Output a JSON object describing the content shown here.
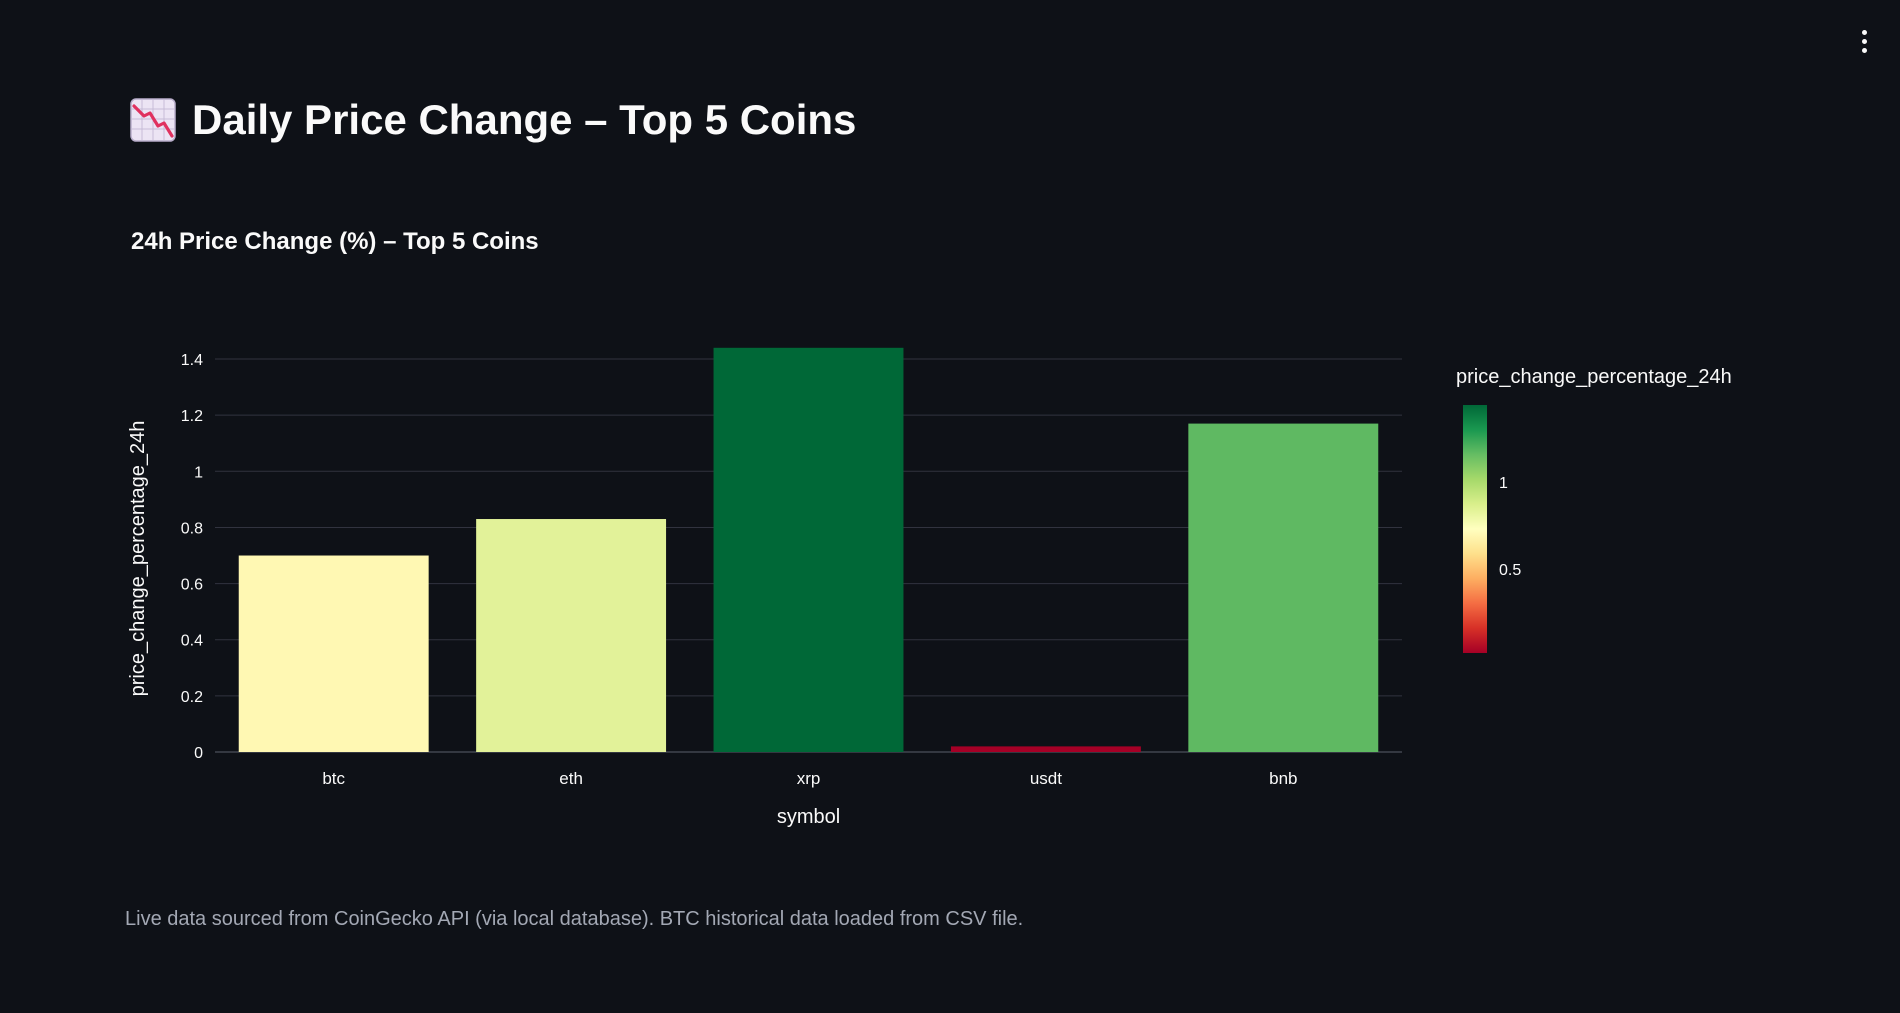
{
  "page": {
    "title": "Daily Price Change – Top 5 Coins",
    "title_icon": "chart-decreasing-icon",
    "menu_icon": "kebab-menu-icon",
    "footer": "Live data sourced from CoinGecko API (via local database). BTC historical data loaded from CSV file."
  },
  "chart_data": {
    "type": "bar",
    "title": "24h Price Change (%) – Top 5 Coins",
    "xlabel": "symbol",
    "ylabel": "price_change_percentage_24h",
    "categories": [
      "btc",
      "eth",
      "xrp",
      "usdt",
      "bnb"
    ],
    "values": [
      0.7,
      0.83,
      1.44,
      0.02,
      1.17
    ],
    "bar_colors": [
      "#fff8b3",
      "#e2f299",
      "#006837",
      "#a50026",
      "#5fb962"
    ],
    "ylim": [
      0,
      1.45
    ],
    "yticks": [
      0,
      0.2,
      0.4,
      0.6,
      0.8,
      1,
      1.2,
      1.4
    ],
    "ytick_labels": [
      "0",
      "0.2",
      "0.4",
      "0.6",
      "0.8",
      "1",
      "1.2",
      "1.4"
    ],
    "grid": true,
    "colorbar": {
      "title": "price_change_percentage_24h",
      "colorscale": "RdYlGn",
      "range": [
        0.02,
        1.44
      ],
      "ticks": [
        0.5,
        1
      ],
      "tick_labels": [
        "0.5",
        "1"
      ],
      "stops": [
        "#a50026",
        "#d73027",
        "#f46d43",
        "#fdae61",
        "#fee08b",
        "#ffffbf",
        "#d9ef8b",
        "#a6d96a",
        "#66bd63",
        "#1a9850",
        "#006837"
      ]
    },
    "colors": {
      "background": "#0e1117",
      "grid": "#31333f",
      "axis_text": "#fafafa"
    }
  }
}
